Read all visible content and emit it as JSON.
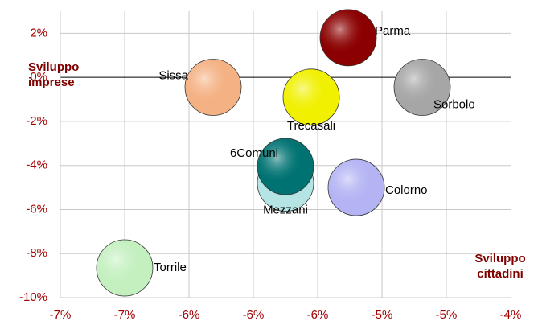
{
  "chart_data": {
    "type": "bubble",
    "x_label": "Sviluppo cittadini",
    "y_label": "Sviluppo imprese",
    "xlim": [
      -7.2,
      -4.4
    ],
    "xticks": [
      {
        "value": -7.2,
        "label": "-7%"
      },
      {
        "value": -6.8,
        "label": "-7%"
      },
      {
        "value": -6.4,
        "label": "-6%"
      },
      {
        "value": -6.0,
        "label": "-6%"
      },
      {
        "value": -5.6,
        "label": "-6%"
      },
      {
        "value": -5.2,
        "label": "-5%"
      },
      {
        "value": -4.8,
        "label": "-5%"
      },
      {
        "value": -4.4,
        "label": "-4%"
      }
    ],
    "ylim": [
      -10,
      3
    ],
    "yticks": [
      {
        "value": -10,
        "label": "-10%"
      },
      {
        "value": -8,
        "label": "-8%"
      },
      {
        "value": -6,
        "label": "-6%"
      },
      {
        "value": -4,
        "label": "-4%"
      },
      {
        "value": -2,
        "label": "-2%"
      },
      {
        "value": 0,
        "label": "0%"
      },
      {
        "value": 2,
        "label": "2%"
      }
    ],
    "grid": true,
    "series": [
      {
        "name": "Parma",
        "color": "#8b0000",
        "x": [
          -5.41
        ],
        "y": [
          1.8
        ],
        "size": [
          1
        ]
      },
      {
        "name": "Sissa",
        "color": "#f4b183",
        "x": [
          -6.25
        ],
        "y": [
          -0.45
        ],
        "size": [
          1
        ]
      },
      {
        "name": "Trecasali",
        "color": "#f0f000",
        "x": [
          -5.64
        ],
        "y": [
          -0.9
        ],
        "size": [
          1
        ]
      },
      {
        "name": "Sorbolo",
        "color": "#a6a6a6",
        "x": [
          -4.95
        ],
        "y": [
          -0.45
        ],
        "size": [
          1
        ]
      },
      {
        "name": "Mezzani",
        "color": "#b4e4e4",
        "x": [
          -5.8
        ],
        "y": [
          -4.8
        ],
        "size": [
          1
        ]
      },
      {
        "name": "6Comuni",
        "color": "#007272",
        "x": [
          -5.8
        ],
        "y": [
          -4.05
        ],
        "size": [
          1
        ]
      },
      {
        "name": "Colorno",
        "color": "#b4b4f4",
        "x": [
          -5.36
        ],
        "y": [
          -5.0
        ],
        "size": [
          1
        ]
      },
      {
        "name": "Torrile",
        "color": "#c4f0c0",
        "x": [
          -6.8
        ],
        "y": [
          -8.65
        ],
        "size": [
          1
        ]
      }
    ]
  }
}
